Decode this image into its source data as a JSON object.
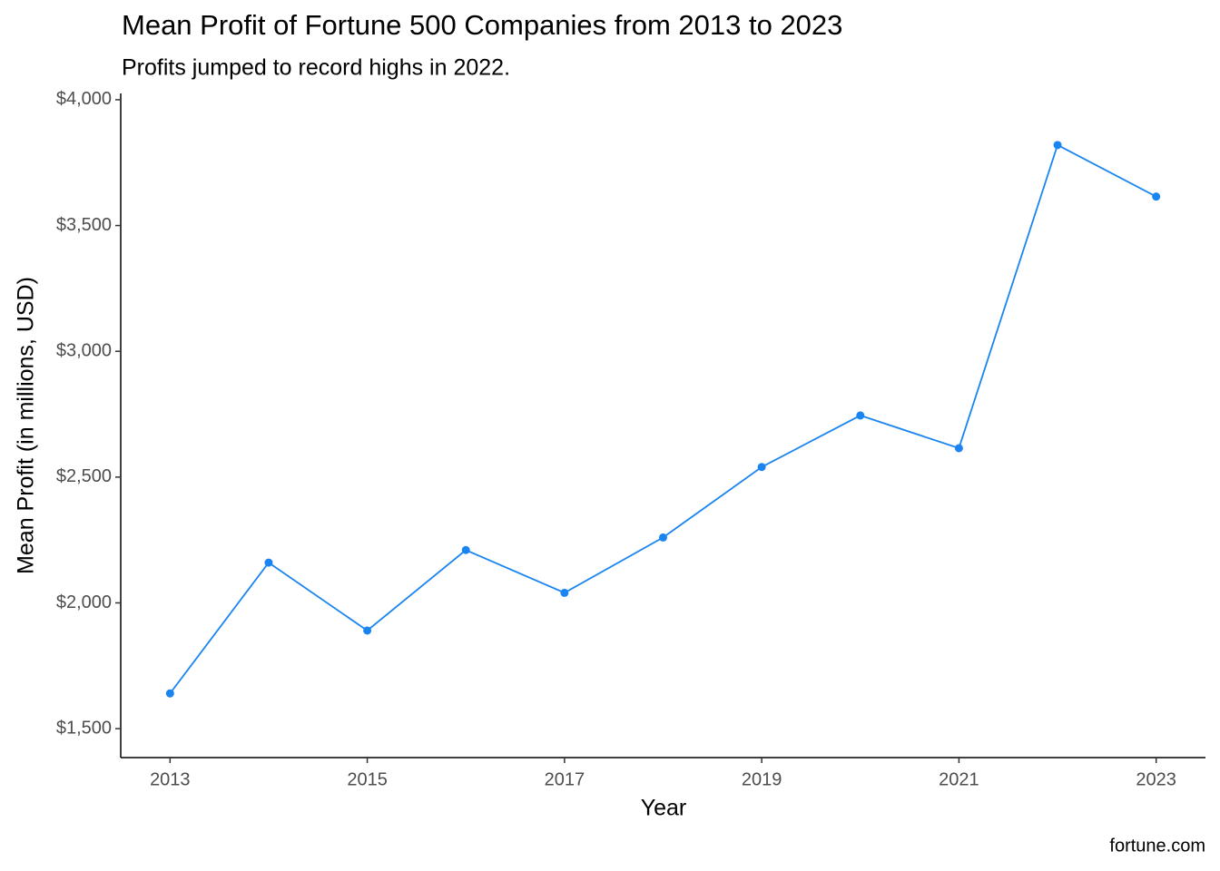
{
  "chart_data": {
    "type": "line",
    "title": "Mean Profit of Fortune 500 Companies from 2013 to 2023",
    "subtitle": "Profits jumped to record highs in 2022.",
    "x_label": "Year",
    "y_label": "Mean Profit (in millions, USD)",
    "caption": "fortune.com",
    "x": [
      2013,
      2014,
      2015,
      2016,
      2017,
      2018,
      2019,
      2020,
      2021,
      2022,
      2023
    ],
    "series": [
      {
        "name": "Mean Profit",
        "color": "#1a85f0",
        "values": [
          1640,
          2160,
          1890,
          2210,
          2040,
          2260,
          2540,
          2745,
          2615,
          3820,
          3615
        ]
      }
    ],
    "xlim": [
      2012.5,
      2023.5
    ],
    "xticks": [
      2013,
      2015,
      2017,
      2019,
      2021,
      2023
    ],
    "ylim": [
      1385,
      4025
    ],
    "yticks": [
      {
        "value": 1500,
        "label": "$1,500"
      },
      {
        "value": 2000,
        "label": "$2,000"
      },
      {
        "value": 2500,
        "label": "$2,500"
      },
      {
        "value": 3000,
        "label": "$3,000"
      },
      {
        "value": 3500,
        "label": "$3,500"
      },
      {
        "value": 4000,
        "label": "$4,000"
      }
    ],
    "grid": false
  }
}
